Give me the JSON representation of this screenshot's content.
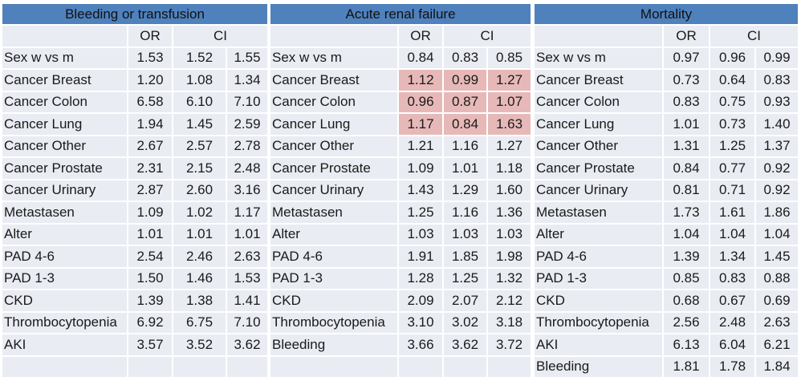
{
  "panels": [
    {
      "title": "Bleeding or transfusion",
      "or_label": "OR",
      "ci_label": "CI",
      "rows": [
        {
          "label": "Sex w vs m",
          "or": "1.53",
          "lo": "1.52",
          "hi": "1.55"
        },
        {
          "label": "Cancer Breast",
          "or": "1.20",
          "lo": "1.08",
          "hi": "1.34"
        },
        {
          "label": "Cancer Colon",
          "or": "6.58",
          "lo": "6.10",
          "hi": "7.10"
        },
        {
          "label": "Cancer Lung",
          "or": "1.94",
          "lo": "1.45",
          "hi": "2.59"
        },
        {
          "label": "Cancer Other",
          "or": "2.67",
          "lo": "2.57",
          "hi": "2.78"
        },
        {
          "label": "Cancer Prostate",
          "or": "2.31",
          "lo": "2.15",
          "hi": "2.48"
        },
        {
          "label": "Cancer Urinary",
          "or": "2.87",
          "lo": "2.60",
          "hi": "3.16"
        },
        {
          "label": "Metastasen",
          "or": "1.09",
          "lo": "1.02",
          "hi": "1.17"
        },
        {
          "label": "Alter",
          "or": "1.01",
          "lo": "1.01",
          "hi": "1.01"
        },
        {
          "label": "PAD 4-6",
          "or": "2.54",
          "lo": "2.46",
          "hi": "2.63"
        },
        {
          "label": "PAD  1-3",
          "or": "1.50",
          "lo": "1.46",
          "hi": "1.53"
        },
        {
          "label": "CKD",
          "or": "1.39",
          "lo": "1.38",
          "hi": "1.41"
        },
        {
          "label": "Thrombocytopenia",
          "or": "6.92",
          "lo": "6.75",
          "hi": "7.10"
        },
        {
          "label": "AKI",
          "or": "3.57",
          "lo": "3.52",
          "hi": "3.62"
        },
        {
          "label": "",
          "or": "",
          "lo": "",
          "hi": ""
        }
      ]
    },
    {
      "title": "Acute renal failure",
      "or_label": "OR",
      "ci_label": "CI",
      "highlight_color": "#e6b9b8",
      "rows": [
        {
          "label": "Sex w vs m",
          "or": "0.84",
          "lo": "0.83",
          "hi": "0.85"
        },
        {
          "label": "Cancer Breast",
          "or": "1.12",
          "lo": "0.99",
          "hi": "1.27",
          "highlight": true
        },
        {
          "label": "Cancer Colon",
          "or": "0.96",
          "lo": "0.87",
          "hi": "1.07",
          "highlight": true
        },
        {
          "label": "Cancer Lung",
          "or": "1.17",
          "lo": "0.84",
          "hi": "1.63",
          "highlight": true
        },
        {
          "label": "Cancer Other",
          "or": "1.21",
          "lo": "1.16",
          "hi": "1.27"
        },
        {
          "label": "Cancer Prostate",
          "or": "1.09",
          "lo": "1.01",
          "hi": "1.18"
        },
        {
          "label": "Cancer Urinary",
          "or": "1.43",
          "lo": "1.29",
          "hi": "1.60"
        },
        {
          "label": "Metastasen",
          "or": "1.25",
          "lo": "1.16",
          "hi": "1.36"
        },
        {
          "label": "Alter",
          "or": "1.03",
          "lo": "1.03",
          "hi": "1.03"
        },
        {
          "label": "PAD 4-6",
          "or": "1.91",
          "lo": "1.85",
          "hi": "1.98"
        },
        {
          "label": "PAD  1-3",
          "or": "1.28",
          "lo": "1.25",
          "hi": "1.32"
        },
        {
          "label": "CKD",
          "or": "2.09",
          "lo": "2.07",
          "hi": "2.12"
        },
        {
          "label": "Thrombocytopenia",
          "or": "3.10",
          "lo": "3.02",
          "hi": "3.18"
        },
        {
          "label": "Bleeding",
          "or": "3.66",
          "lo": "3.62",
          "hi": "3.72"
        },
        {
          "label": "",
          "or": "",
          "lo": "",
          "hi": ""
        }
      ]
    },
    {
      "title": "Mortality",
      "or_label": "OR",
      "ci_label": "CI",
      "rows": [
        {
          "label": "Sex w vs m",
          "or": "0.97",
          "lo": "0.96",
          "hi": "0.99"
        },
        {
          "label": "Cancer Breast",
          "or": "0.73",
          "lo": "0.64",
          "hi": "0.83"
        },
        {
          "label": "Cancer Colon",
          "or": "0.83",
          "lo": "0.75",
          "hi": "0.93"
        },
        {
          "label": "Cancer Lung",
          "or": "1.01",
          "lo": "0.73",
          "hi": "1.40"
        },
        {
          "label": "Cancer Other",
          "or": "1.31",
          "lo": "1.25",
          "hi": "1.37"
        },
        {
          "label": "Cancer Prostate",
          "or": "0.84",
          "lo": "0.77",
          "hi": "0.92"
        },
        {
          "label": "Cancer Urinary",
          "or": "0.81",
          "lo": "0.71",
          "hi": "0.92"
        },
        {
          "label": "Metastasen",
          "or": "1.73",
          "lo": "1.61",
          "hi": "1.86"
        },
        {
          "label": "Alter",
          "or": "1.04",
          "lo": "1.04",
          "hi": "1.04"
        },
        {
          "label": "PAD 4-6",
          "or": "1.39",
          "lo": "1.34",
          "hi": "1.45"
        },
        {
          "label": "PAD  1-3",
          "or": "0.85",
          "lo": "0.83",
          "hi": "0.88"
        },
        {
          "label": "CKD",
          "or": "0.68",
          "lo": "0.67",
          "hi": "0.69"
        },
        {
          "label": "Thrombocytopenia",
          "or": "2.56",
          "lo": "2.48",
          "hi": "2.63"
        },
        {
          "label": "AKI",
          "or": "6.13",
          "lo": "6.04",
          "hi": "6.21"
        },
        {
          "label": "Bleeding",
          "or": "1.81",
          "lo": "1.78",
          "hi": "1.84"
        }
      ]
    }
  ]
}
